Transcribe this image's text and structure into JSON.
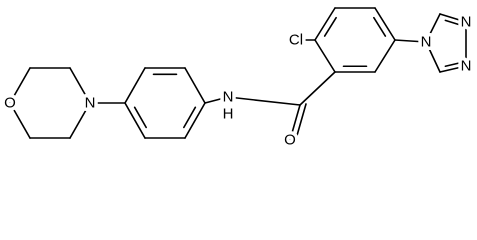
{
  "atoms": [
    {
      "label": "O"
    },
    {
      "label": "N"
    },
    {
      "label": "N"
    },
    {
      "label": "H"
    },
    {
      "label": "O"
    },
    {
      "label": "Cl"
    },
    {
      "label": "N"
    },
    {
      "label": "N"
    },
    {
      "label": "N"
    }
  ]
}
